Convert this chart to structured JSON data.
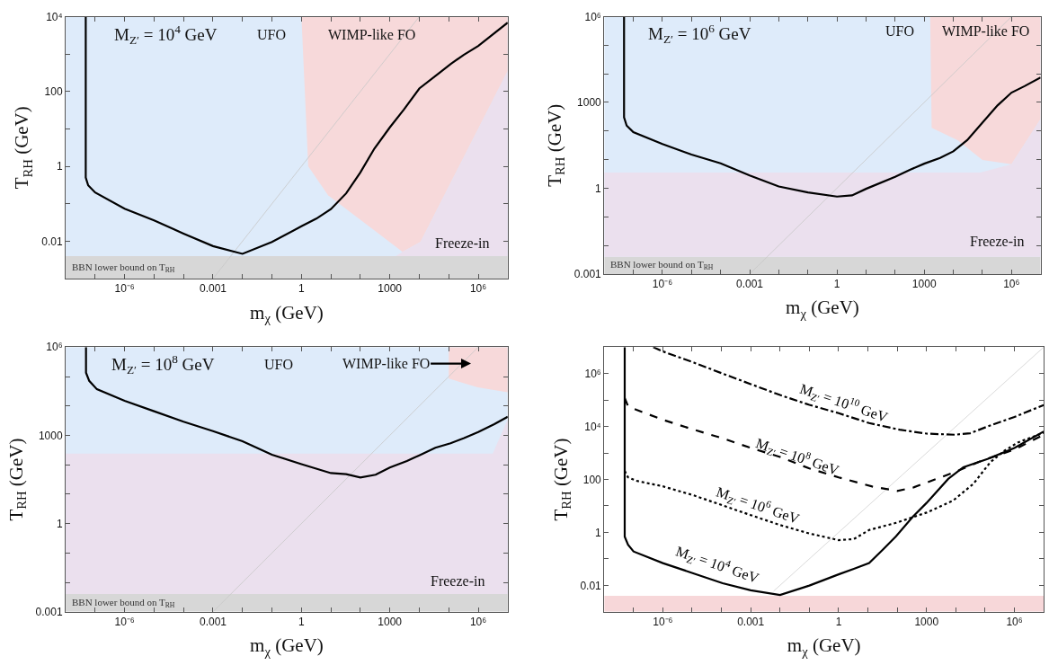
{
  "chart_data": [
    {
      "type": "line",
      "xlabel": "m$_{χ}$ (GeV)",
      "ylabel": "T$_{RH}$ (GeV)",
      "log": "xy",
      "xlim": [
        1e-08,
        10000000.0
      ],
      "ylim": [
        0.001,
        10000
      ],
      "xticks": [
        {
          "value": 1e-07,
          "label": null
        },
        {
          "value": 1e-06,
          "label": "10⁻⁶"
        },
        {
          "value": 1e-05,
          "label": null
        },
        {
          "value": 0.0001,
          "label": null
        },
        0.001,
        {
          "value": 0.01,
          "label": null
        },
        {
          "value": 0.1,
          "label": null
        },
        1,
        {
          "value": 10,
          "label": null
        },
        {
          "value": 100,
          "label": null
        },
        1000,
        {
          "value": 10000,
          "label": null
        },
        {
          "value": 100000,
          "label": null
        },
        {
          "value": 1000000,
          "label": "10⁶"
        }
      ],
      "yticks": [
        0.01,
        {
          "value": 0.1,
          "label": null
        },
        1,
        {
          "value": 10,
          "label": null
        },
        100,
        {
          "value": 1000,
          "label": null
        },
        {
          "value": 10000,
          "label": "10⁴"
        }
      ],
      "series": [
        {
          "type": "area",
          "color": "#f7d9da",
          "x": [
            1,
            1.7,
            8,
            2700,
            11000,
            10000000.0,
            10000000.0
          ],
          "values": [
            10000,
            1,
            0.17,
            0.0052,
            0.0095,
            355,
            10000
          ]
        },
        {
          "type": "area",
          "color": "#ebe0ee",
          "x": [
            1600,
            2700,
            11000,
            10000000.0
          ],
          "values": [
            0.004,
            0.0052,
            0.0095,
            355
          ]
        },
        {
          "color": "#c8c8c8",
          "x": [
            0.001,
            10000
          ],
          "values": [
            0.001,
            10000
          ]
        },
        {
          "color": "#000000",
          "x": [
            4.8e-08,
            4.8e-08,
            5.8e-08,
            1e-07,
            1e-06,
            1e-05,
            0.0001,
            0.001,
            0.01,
            0.1,
            1,
            3.2,
            10,
            33,
            100,
            300,
            1000,
            3000,
            10000,
            40000,
            120000,
            320000,
            1000000,
            10000000.0
          ],
          "values": [
            10000,
            0.5,
            0.31,
            0.2,
            0.074,
            0.036,
            0.016,
            0.0074,
            0.0046,
            0.0095,
            0.025,
            0.04,
            0.072,
            0.19,
            0.69,
            3.0,
            11,
            33,
            120,
            280,
            550,
            950,
            1650,
            6900
          ]
        }
      ],
      "bands": [
        {
          "axis": "y",
          "from": 0.004,
          "to": 10000,
          "color": "#deebfa"
        },
        {
          "axis": "y",
          "from": 0.001,
          "to": 0.004,
          "label": "BBN lower bound on T$_{RH}$",
          "color": "#d7d7d7"
        }
      ],
      "annotations": [
        "M$_{Z′}$ = 10$^{4}$ GeV",
        "UFO",
        "WIMP-like FO",
        "Freeze-in"
      ]
    },
    {
      "type": "line",
      "xlabel": "m$_{χ}$ (GeV)",
      "ylabel": "T$_{RH}$ (GeV)",
      "log": "xy",
      "xlim": [
        1e-08,
        10000000.0
      ],
      "ylim": [
        0.001,
        1000000
      ],
      "xticks": [
        {
          "value": 1e-07,
          "label": null
        },
        {
          "value": 1e-06,
          "label": "10⁻⁶"
        },
        {
          "value": 1e-05,
          "label": null
        },
        {
          "value": 0.0001,
          "label": null
        },
        0.001,
        {
          "value": 0.01,
          "label": null
        },
        {
          "value": 0.1,
          "label": null
        },
        1,
        {
          "value": 10,
          "label": null
        },
        {
          "value": 100,
          "label": null
        },
        1000,
        {
          "value": 10000,
          "label": null
        },
        {
          "value": 100000,
          "label": null
        },
        {
          "value": 1000000,
          "label": "10⁶"
        }
      ],
      "yticks": [
        0.001,
        {
          "value": 0.01,
          "label": null
        },
        {
          "value": 0.1,
          "label": null
        },
        1,
        {
          "value": 10,
          "label": null
        },
        {
          "value": 100,
          "label": null
        },
        1000,
        {
          "value": 10000,
          "label": null
        },
        {
          "value": 100000,
          "label": null
        },
        {
          "value": 1000000,
          "label": "10⁶"
        }
      ],
      "series": [
        {
          "type": "area",
          "color": "#f7d9da",
          "x": [
            1600,
            1800,
            14000,
            100000,
            1000000,
            10000000.0,
            10000000.0
          ],
          "values": [
            1000000,
            130,
            48,
            9.8,
            6.9,
            263,
            1000000
          ]
        },
        {
          "type": "area",
          "color": "#ebe0ee",
          "x": [
            1e-08,
            85000,
            1000000,
            10000000.0
          ],
          "values": [
            3.5,
            3.5,
            6.9,
            263
          ]
        },
        {
          "color": "#c8c8c8",
          "x": [
            0.001,
            1000000
          ],
          "values": [
            0.001,
            1000000
          ]
        },
        {
          "color": "#000000",
          "x": [
            4.8e-08,
            4.8e-08,
            5.9e-08,
            1e-07,
            1e-06,
            1e-05,
            0.0001,
            0.001,
            0.01,
            0.1,
            1,
            3.3,
            10,
            100,
            320,
            1000,
            3500,
            10000,
            30000,
            87000,
            330000,
            1000000,
            2800000,
            10000000.0
          ],
          "values": [
            1000000,
            300,
            155,
            91,
            35,
            15,
            7.4,
            2.8,
            1.15,
            0.71,
            0.51,
            0.56,
            0.95,
            2.5,
            4.4,
            7.2,
            11.5,
            19.5,
            48,
            166,
            780,
            2200,
            3700,
            7400
          ]
        }
      ],
      "bands": [
        {
          "axis": "y",
          "from": 0.004,
          "to": 1000000,
          "color": "#deebfa"
        },
        {
          "axis": "y",
          "from": 0.001,
          "to": 0.004,
          "label": "BBN lower bound on T$_{RH}$",
          "color": "#d7d7d7"
        }
      ],
      "annotations": [
        "M$_{Z′}$ = 10$^{6}$ GeV",
        "UFO",
        "WIMP-like FO",
        "Freeze-in"
      ]
    },
    {
      "type": "line",
      "xlabel": "m$_{χ}$ (GeV)",
      "ylabel": "T$_{RH}$ (GeV)",
      "log": "xy",
      "xlim": [
        1e-08,
        10000000.0
      ],
      "ylim": [
        0.001,
        1000000
      ],
      "xticks": [
        {
          "value": 1e-07,
          "label": null
        },
        {
          "value": 1e-06,
          "label": "10⁻⁶"
        },
        {
          "value": 1e-05,
          "label": null
        },
        {
          "value": 0.0001,
          "label": null
        },
        0.001,
        {
          "value": 0.01,
          "label": null
        },
        {
          "value": 0.1,
          "label": null
        },
        1,
        {
          "value": 10,
          "label": null
        },
        {
          "value": 100,
          "label": null
        },
        1000,
        {
          "value": 10000,
          "label": null
        },
        {
          "value": 100000,
          "label": null
        },
        {
          "value": 1000000,
          "label": "10⁶"
        }
      ],
      "yticks": [
        0.001,
        {
          "value": 0.01,
          "label": null
        },
        {
          "value": 0.1,
          "label": null
        },
        1,
        {
          "value": 10,
          "label": null
        },
        {
          "value": 100,
          "label": null
        },
        1000,
        {
          "value": 10000,
          "label": null
        },
        {
          "value": 100000,
          "label": null
        },
        {
          "value": 1000000,
          "label": "10⁶"
        }
      ],
      "series": [
        {
          "type": "area",
          "color": "#f7d9da",
          "x": [
            100000,
            100000,
            950000,
            10000000.0,
            10000000.0
          ],
          "values": [
            1000000,
            85000,
            43000,
            29000,
            1000000
          ]
        },
        {
          "type": "area",
          "color": "#ebe0ee",
          "x": [
            1e-08,
            3100000,
            10000000.0
          ],
          "values": [
            240,
            240,
            3500
          ]
        },
        {
          "color": "#c8c8c8",
          "x": [
            0.001,
            1000000
          ],
          "values": [
            0.001,
            1000000
          ]
        },
        {
          "color": "#000000",
          "x": [
            4.9e-08,
            4.9e-08,
            6.3e-08,
            1.15e-07,
            1e-06,
            1e-05,
            0.0001,
            0.001,
            0.01,
            0.1,
            1,
            10,
            33,
            100,
            330,
            1000,
            3800,
            10000,
            35000,
            115000,
            330000,
            1000000,
            3500000,
            10000000.0
          ],
          "values": [
            1000000,
            135000,
            71000,
            37000,
            15000,
            6600,
            2900,
            1400,
            630,
            220,
            105,
            52,
            48,
            37,
            46,
            81,
            135,
            210,
            380,
            540,
            810,
            1300,
            2400,
            4300
          ]
        }
      ],
      "bands": [
        {
          "axis": "y",
          "from": 0.004,
          "to": 1000000,
          "color": "#deebfa"
        },
        {
          "axis": "y",
          "from": 0.001,
          "to": 0.004,
          "label": "BBN lower bound on T$_{RH}$",
          "color": "#d7d7d7"
        }
      ],
      "annotations": [
        "M$_{Z′}$ = 10$^{8}$ GeV",
        "UFO",
        "WIMP-like FO",
        "Freeze-in"
      ]
    },
    {
      "type": "line",
      "xlabel": "m$_{χ}$ (GeV)",
      "ylabel": "T$_{RH}$ (GeV)",
      "log": "xy",
      "xlim": [
        1e-08,
        10000000.0
      ],
      "ylim": [
        0.001,
        10000000.0
      ],
      "xticks": [
        {
          "value": 1e-07,
          "label": null
        },
        {
          "value": 1e-06,
          "label": "10⁻⁶"
        },
        {
          "value": 1e-05,
          "label": null
        },
        {
          "value": 0.0001,
          "label": null
        },
        0.001,
        {
          "value": 0.01,
          "label": null
        },
        {
          "value": 0.1,
          "label": null
        },
        1,
        {
          "value": 10,
          "label": null
        },
        {
          "value": 100,
          "label": null
        },
        1000,
        {
          "value": 10000,
          "label": null
        },
        {
          "value": 100000,
          "label": null
        },
        {
          "value": 1000000,
          "label": "10⁶"
        }
      ],
      "yticks": [
        0.01,
        {
          "value": 0.1,
          "label": null
        },
        1,
        {
          "value": 10,
          "label": null
        },
        100,
        {
          "value": 1000,
          "label": null
        },
        {
          "value": 10000,
          "label": "10⁴"
        },
        {
          "value": 100000,
          "label": null
        },
        {
          "value": 1000000,
          "label": "10⁶"
        }
      ],
      "series": [
        {
          "color": "#d0d0d0",
          "x": [
            0.006,
            10000000.0
          ],
          "values": [
            0.006,
            10000000.0
          ]
        },
        {
          "name": "M$_{Z′}$ = 10$^{4}$ GeV",
          "color": "#000000",
          "line_style": "solid",
          "x": [
            5e-08,
            5e-08,
            6.5e-08,
            1e-07,
            1e-06,
            1.15e-05,
            0.00011,
            0.001,
            0.01,
            0.1,
            1,
            3.3,
            11,
            32,
            91,
            340,
            1000,
            5500,
            18000,
            120000,
            1000000,
            10000000.0
          ],
          "values": [
            10000000.0,
            0.69,
            0.34,
            0.19,
            0.069,
            0.028,
            0.012,
            0.0065,
            0.0043,
            0.0098,
            0.026,
            0.042,
            0.069,
            0.22,
            0.72,
            3.9,
            13,
            105,
            290,
            590,
            1550,
            6500
          ]
        },
        {
          "name": "M$_{Z′}$ = 10$^{6}$ GeV",
          "color": "#000000",
          "line_style": "dotted",
          "x": [
            5e-08,
            6.5e-08,
            1.26e-07,
            1e-06,
            1.15e-05,
            0.00011,
            0.001,
            0.01,
            0.1,
            1,
            3.3,
            11,
            91,
            1000,
            8100,
            40000,
            150000,
            450000,
            1300000,
            10000000.0
          ],
          "values": [
            210,
            120,
            89,
            55,
            25,
            10.5,
            4.5,
            1.9,
            0.91,
            0.51,
            0.56,
            1.23,
            2.3,
            5.6,
            16,
            69,
            450,
            1200,
            2500,
            5800
          ]
        },
        {
          "name": "M$_{Z′}$ = 10$^{8}$ GeV",
          "color": "#000000",
          "line_style": "dashed",
          "x": [
            5e-08,
            6.5e-08,
            1.26e-07,
            1e-06,
            1.15e-05,
            0.00011,
            0.001,
            0.01,
            0.1,
            1,
            14,
            100,
            340,
            1000,
            8100,
            69000,
            1000000,
            10000000.0
          ],
          "values": [
            120000,
            58000,
            43000,
            18000,
            7600,
            3600,
            1550,
            710,
            260,
            120,
            54,
            37,
            49,
            76,
            180,
            490,
            1350,
            4900
          ]
        },
        {
          "name": "M$_{Z′}$ = 10$^{10}$ GeV",
          "color": "#000000",
          "line_style": "dashdot",
          "x": [
            4.7e-07,
            1e-06,
            1.15e-05,
            0.00011,
            0.001,
            0.01,
            0.1,
            1,
            11,
            120,
            1000,
            9300,
            31000,
            120000,
            1000000,
            10000000.0
          ],
          "values": [
            10000000.0,
            6900000,
            2600000,
            1000000,
            400000,
            155000,
            66000,
            32000,
            13500,
            7600,
            5400,
            4900,
            5600,
            10000,
            23000,
            65000
          ]
        }
      ],
      "bands": [
        {
          "axis": "y",
          "from": 0.001,
          "to": 0.004,
          "color": "#f7d7d9"
        }
      ]
    }
  ]
}
